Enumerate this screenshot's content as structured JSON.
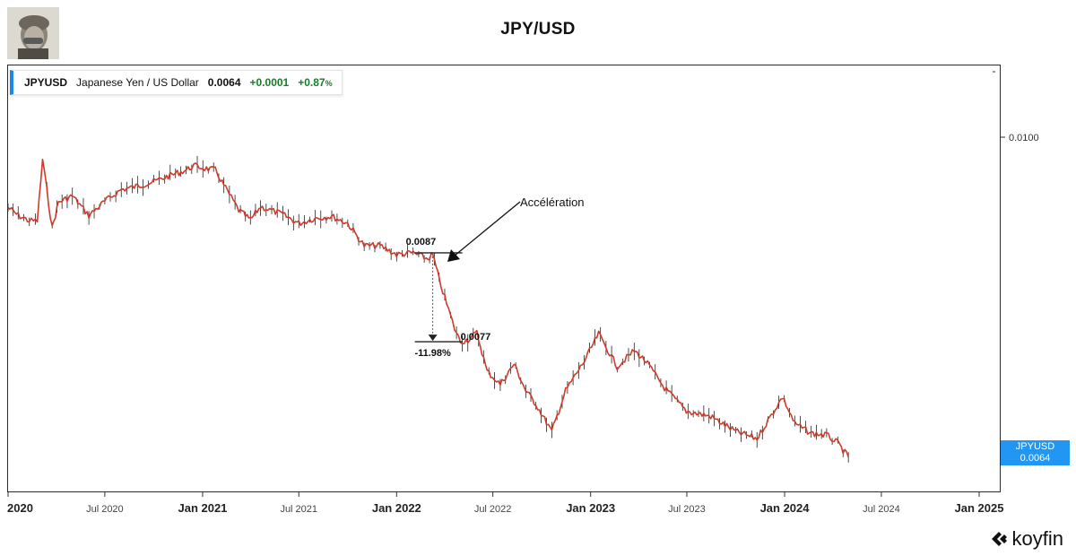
{
  "title": "JPY/USD",
  "legend": {
    "symbol": "JPYUSD",
    "name": "Japanese Yen / US Dollar",
    "value": "0.0064",
    "change": "+0.0001",
    "change_pct": "+0.87",
    "pct_sign": "%"
  },
  "price_tag": {
    "symbol": "JPYUSD",
    "value": "0.0064"
  },
  "brand": "koyfin",
  "colors": {
    "line": "#d03a2b",
    "wick": "#222222",
    "accent": "#2196f3",
    "positive": "#1b7a2a"
  },
  "chart_data": {
    "type": "line",
    "title": "JPY/USD",
    "x_ticks": [
      "2020",
      "Jul 2020",
      "Jan 2021",
      "Jul 2021",
      "Jan 2022",
      "Jul 2022",
      "Jan 2023",
      "Jul 2023",
      "Jan 2024",
      "Jul 2024",
      "Jan 2025"
    ],
    "y_ticks": [
      "0.0100"
    ],
    "xlim": [
      "2020-01-01",
      "2025-01-01"
    ],
    "ylim": [
      0.0061,
      0.0105
    ],
    "series": [
      {
        "points": [
          [
            "2020-01-01",
            0.00921
          ],
          [
            "2020-01-20",
            0.00912
          ],
          [
            "2020-02-10",
            0.00906
          ],
          [
            "2020-02-25",
            0.00906
          ],
          [
            "2020-03-06",
            0.00975
          ],
          [
            "2020-03-14",
            0.0094
          ],
          [
            "2020-03-24",
            0.00898
          ],
          [
            "2020-04-05",
            0.00927
          ],
          [
            "2020-05-01",
            0.00934
          ],
          [
            "2020-06-01",
            0.00912
          ],
          [
            "2020-07-01",
            0.00928
          ],
          [
            "2020-08-01",
            0.00941
          ],
          [
            "2020-09-01",
            0.00945
          ],
          [
            "2020-10-01",
            0.0095
          ],
          [
            "2020-11-01",
            0.00957
          ],
          [
            "2020-12-01",
            0.00963
          ],
          [
            "2020-12-15",
            0.00968
          ],
          [
            "2021-01-05",
            0.00965
          ],
          [
            "2021-01-25",
            0.00963
          ],
          [
            "2021-02-10",
            0.00946
          ],
          [
            "2021-03-10",
            0.00918
          ],
          [
            "2021-04-01",
            0.00907
          ],
          [
            "2021-04-20",
            0.00922
          ],
          [
            "2021-06-01",
            0.00913
          ],
          [
            "2021-07-01",
            0.00903
          ],
          [
            "2021-08-01",
            0.00909
          ],
          [
            "2021-09-01",
            0.00911
          ],
          [
            "2021-10-01",
            0.00903
          ],
          [
            "2021-11-01",
            0.00878
          ],
          [
            "2021-12-01",
            0.00878
          ],
          [
            "2022-01-01",
            0.00868
          ],
          [
            "2022-02-01",
            0.0087
          ],
          [
            "2022-03-01",
            0.00863
          ],
          [
            "2022-03-10",
            0.00868
          ],
          [
            "2022-03-22",
            0.0084
          ],
          [
            "2022-04-05",
            0.00813
          ],
          [
            "2022-04-20",
            0.00785
          ],
          [
            "2022-05-01",
            0.0077
          ],
          [
            "2022-05-15",
            0.00772
          ],
          [
            "2022-06-01",
            0.0078
          ],
          [
            "2022-06-20",
            0.00737
          ],
          [
            "2022-07-15",
            0.00722
          ],
          [
            "2022-08-10",
            0.00745
          ],
          [
            "2022-09-01",
            0.00715
          ],
          [
            "2022-09-20",
            0.007
          ],
          [
            "2022-10-20",
            0.00669
          ],
          [
            "2022-11-15",
            0.00715
          ],
          [
            "2022-12-20",
            0.00748
          ],
          [
            "2023-01-16",
            0.00779
          ],
          [
            "2023-02-20",
            0.00742
          ],
          [
            "2023-03-24",
            0.0076
          ],
          [
            "2023-04-15",
            0.00748
          ],
          [
            "2023-05-20",
            0.00718
          ],
          [
            "2023-06-30",
            0.00692
          ],
          [
            "2023-08-15",
            0.00686
          ],
          [
            "2023-10-01",
            0.00669
          ],
          [
            "2023-11-10",
            0.00661
          ],
          [
            "2023-12-28",
            0.00708
          ],
          [
            "2024-01-20",
            0.00678
          ],
          [
            "2024-02-20",
            0.00667
          ],
          [
            "2024-03-20",
            0.00665
          ],
          [
            "2024-04-10",
            0.00656
          ],
          [
            "2024-04-30",
            0.0064
          ]
        ]
      }
    ],
    "annotations": {
      "high_label": "0.0087",
      "low_label": "0.0077",
      "change_label": "-11.98%",
      "arrow_label": "Accélération"
    }
  }
}
